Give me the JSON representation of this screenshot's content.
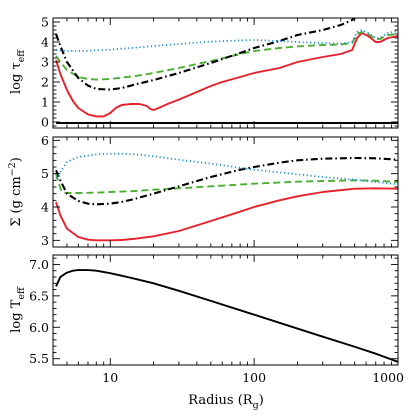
{
  "chart_data": [
    {
      "type": "line",
      "panel": "optical-depth",
      "ylabel": "log τ_eff",
      "ylabel_main": "log τ",
      "ylabel_sub": "eff",
      "xscale": "log",
      "xlim": [
        4,
        1000
      ],
      "ylim": [
        -0.3,
        5.2
      ],
      "yticks": [
        0,
        1,
        2,
        3,
        4,
        5
      ],
      "yticklabels": [
        "0",
        "1",
        "2",
        "3",
        "4",
        "5"
      ],
      "series": [
        {
          "color": "#e8202a",
          "dash": "solid",
          "x": [
            4.2,
            4.5,
            5,
            5.5,
            6,
            7,
            8,
            9,
            10,
            11,
            12,
            14,
            16,
            18,
            19,
            20,
            22,
            25,
            30,
            40,
            50,
            60,
            80,
            100,
            150,
            200,
            300,
            400,
            480,
            520,
            560,
            620,
            700,
            750,
            850,
            1000
          ],
          "y": [
            3.1,
            2.4,
            1.6,
            1.05,
            0.7,
            0.38,
            0.28,
            0.28,
            0.45,
            0.72,
            0.85,
            0.9,
            0.9,
            0.8,
            0.65,
            0.6,
            0.72,
            0.9,
            1.12,
            1.5,
            1.8,
            2.0,
            2.25,
            2.45,
            2.7,
            3.0,
            3.25,
            3.4,
            3.6,
            4.2,
            4.45,
            4.3,
            4.0,
            4.0,
            4.2,
            4.3
          ]
        },
        {
          "color": "#4caf32",
          "dash": "dashed",
          "x": [
            4.2,
            4.5,
            5,
            6,
            7,
            8,
            10,
            12,
            15,
            20,
            30,
            50,
            80,
            100,
            150,
            200,
            300,
            400,
            480,
            520,
            560,
            620,
            700,
            750,
            850,
            1000
          ],
          "y": [
            3.3,
            3.0,
            2.6,
            2.25,
            2.15,
            2.12,
            2.15,
            2.22,
            2.3,
            2.45,
            2.7,
            3.05,
            3.4,
            3.55,
            3.7,
            3.78,
            3.85,
            3.87,
            3.95,
            4.4,
            4.5,
            4.4,
            4.15,
            4.15,
            4.35,
            4.4
          ]
        },
        {
          "color": "#000000",
          "dash": "dashdot",
          "x": [
            4.2,
            4.5,
            5,
            6,
            7,
            8,
            10,
            12,
            15,
            20,
            30,
            50,
            80,
            100,
            150,
            200,
            300,
            400,
            480,
            520
          ],
          "y": [
            4.4,
            3.8,
            3.0,
            2.2,
            1.82,
            1.65,
            1.62,
            1.7,
            1.88,
            2.1,
            2.45,
            2.95,
            3.45,
            3.7,
            4.05,
            4.35,
            4.6,
            4.85,
            5.1,
            5.3
          ]
        },
        {
          "color": "#1f8fd6",
          "dash": "dotted",
          "x": [
            4.2,
            5,
            7,
            10,
            15,
            20,
            30,
            50,
            80,
            100,
            150,
            200,
            300,
            400,
            480,
            520,
            560,
            620,
            700,
            750,
            850,
            1000
          ],
          "y": [
            3.6,
            3.55,
            3.56,
            3.62,
            3.72,
            3.8,
            3.9,
            4.02,
            4.08,
            4.1,
            4.05,
            4.0,
            3.95,
            3.92,
            4.0,
            4.5,
            4.6,
            4.45,
            4.2,
            4.2,
            4.45,
            4.55
          ]
        },
        {
          "color": "#000000",
          "dash": "solid",
          "x": [
            4.2,
            1000
          ],
          "y": [
            -0.05,
            -0.05
          ]
        }
      ]
    },
    {
      "type": "line",
      "panel": "surface-density",
      "ylabel": "Σ (g cm⁻²)",
      "ylabel_main": "Σ (g cm",
      "ylabel_sup": "−2",
      "ylabel_end": ")",
      "xscale": "log",
      "xlim": [
        4,
        1000
      ],
      "ylim": [
        2.8,
        6.1
      ],
      "yticks": [
        3,
        4,
        5,
        6
      ],
      "yticklabels": [
        "3",
        "4",
        "5",
        "6"
      ],
      "series": [
        {
          "color": "#e8202a",
          "dash": "solid",
          "x": [
            4.2,
            4.5,
            5,
            6,
            7,
            8,
            10,
            12,
            15,
            20,
            30,
            50,
            70,
            100,
            150,
            200,
            300,
            500,
            700,
            1000
          ],
          "y": [
            4.15,
            3.75,
            3.35,
            3.1,
            3.02,
            3.0,
            3.0,
            3.01,
            3.05,
            3.12,
            3.28,
            3.58,
            3.78,
            4.0,
            4.2,
            4.32,
            4.45,
            4.55,
            4.56,
            4.55
          ]
        },
        {
          "color": "#4caf32",
          "dash": "dashed",
          "x": [
            4.2,
            4.4,
            4.6,
            5,
            6,
            8,
            10,
            15,
            20,
            30,
            50,
            100,
            200,
            300,
            500,
            700,
            1000
          ],
          "y": [
            5.0,
            4.7,
            4.45,
            4.42,
            4.42,
            4.43,
            4.45,
            4.48,
            4.52,
            4.56,
            4.62,
            4.7,
            4.76,
            4.78,
            4.8,
            4.79,
            4.75
          ]
        },
        {
          "color": "#000000",
          "dash": "dashdot",
          "x": [
            4.2,
            4.5,
            5,
            6,
            7,
            8,
            10,
            12,
            15,
            20,
            30,
            50,
            80,
            100,
            150,
            200,
            300,
            500,
            700,
            1000
          ],
          "y": [
            5.1,
            4.8,
            4.4,
            4.18,
            4.1,
            4.08,
            4.1,
            4.15,
            4.25,
            4.4,
            4.62,
            4.9,
            5.12,
            5.2,
            5.33,
            5.4,
            5.45,
            5.47,
            5.46,
            5.42
          ]
        },
        {
          "color": "#1f8fd6",
          "dash": "dotted",
          "x": [
            4.2,
            5,
            6,
            8,
            10,
            12,
            15,
            20,
            30,
            50,
            100,
            200,
            300,
            500,
            700,
            1000
          ],
          "y": [
            4.85,
            5.35,
            5.5,
            5.58,
            5.6,
            5.6,
            5.58,
            5.52,
            5.42,
            5.3,
            5.12,
            4.98,
            4.9,
            4.82,
            4.75,
            4.68
          ]
        }
      ]
    },
    {
      "type": "line",
      "panel": "temperature",
      "ylabel": "log T_eff",
      "ylabel_main": "log T",
      "ylabel_sub": "eff",
      "xlabel": "Radius (R_g)",
      "xlabel_main": "Radius (R",
      "xlabel_sub": "g",
      "xlabel_end": ")",
      "xscale": "log",
      "xlim": [
        4,
        1000
      ],
      "ylim": [
        5.4,
        7.15
      ],
      "yticks": [
        5.5,
        6.0,
        6.5,
        7.0
      ],
      "yticklabels": [
        "5.5",
        "6.0",
        "6.5",
        "7.0"
      ],
      "xticks": [
        10,
        100,
        1000
      ],
      "xticklabels": [
        "10",
        "100",
        "1000"
      ],
      "series": [
        {
          "color": "#000000",
          "dash": "solid",
          "x": [
            4.2,
            4.5,
            5,
            5.5,
            6,
            7,
            8,
            10,
            12,
            15,
            20,
            30,
            50,
            100,
            200,
            300,
            500,
            700,
            1000
          ],
          "y": [
            6.65,
            6.8,
            6.87,
            6.9,
            6.91,
            6.91,
            6.9,
            6.86,
            6.82,
            6.77,
            6.7,
            6.58,
            6.42,
            6.2,
            5.98,
            5.85,
            5.69,
            5.58,
            5.45
          ]
        }
      ]
    }
  ]
}
